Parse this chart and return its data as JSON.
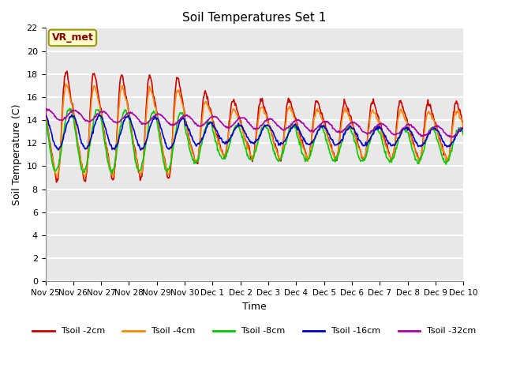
{
  "title": "Soil Temperatures Set 1",
  "xlabel": "Time",
  "ylabel": "Soil Temperature (C)",
  "annotation": "VR_met",
  "ylim": [
    0,
    22
  ],
  "yticks": [
    0,
    2,
    4,
    6,
    8,
    10,
    12,
    14,
    16,
    18,
    20,
    22
  ],
  "xtick_labels": [
    "Nov 25",
    "Nov 26",
    "Nov 27",
    "Nov 28",
    "Nov 29",
    "Nov 30",
    "Dec 1",
    "Dec 2",
    "Dec 3",
    "Dec 4",
    "Dec 5",
    "Dec 6",
    "Dec 7",
    "Dec 8",
    "Dec 9",
    "Dec 10"
  ],
  "num_days": 15,
  "points_per_day": 48,
  "series": {
    "Tsoil -2cm": {
      "color": "#cc0000",
      "lw": 1.2
    },
    "Tsoil -4cm": {
      "color": "#ff8800",
      "lw": 1.2
    },
    "Tsoil -8cm": {
      "color": "#00cc00",
      "lw": 1.2
    },
    "Tsoil -16cm": {
      "color": "#0000cc",
      "lw": 1.2
    },
    "Tsoil -32cm": {
      "color": "#aa00aa",
      "lw": 1.2
    }
  },
  "bg_color": "#e8e8e8",
  "grid_color": "#ffffff",
  "annotation_bg": "#ffffcc",
  "annotation_fg": "#880000"
}
